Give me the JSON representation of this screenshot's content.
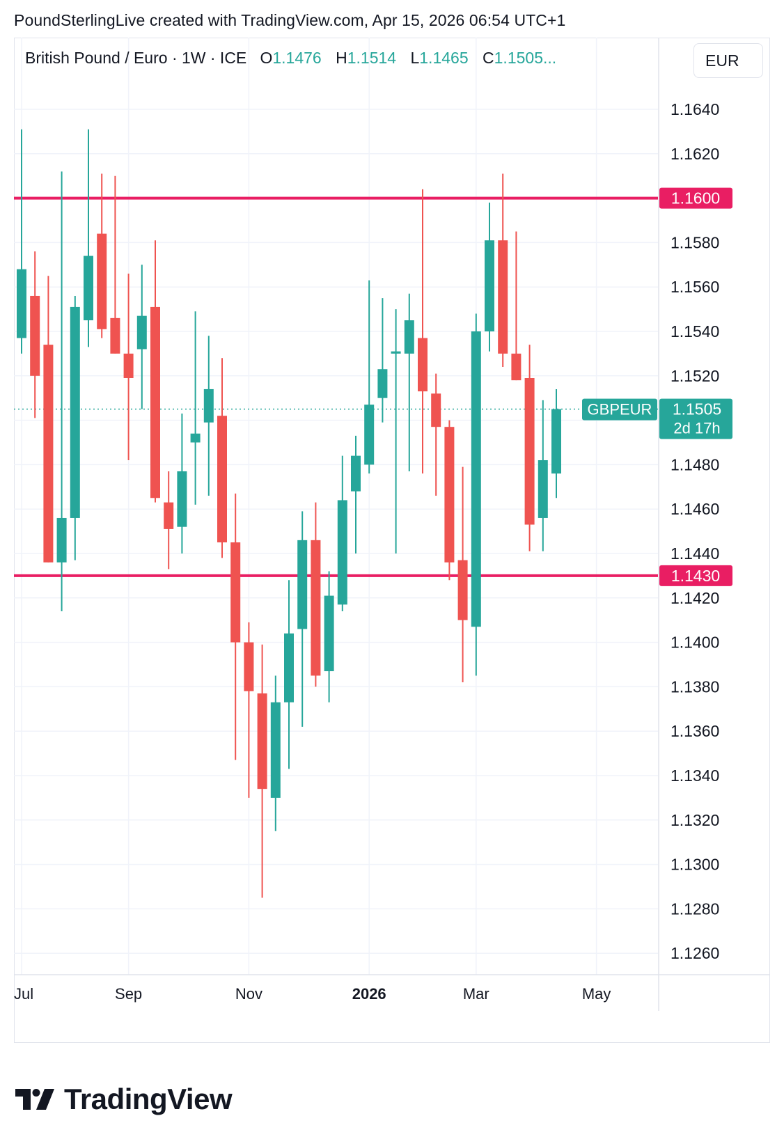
{
  "header": {
    "attribution": "PoundSterlingLive created with TradingView.com, Apr 15, 2026 06:54 UTC+1"
  },
  "legend": {
    "symbol": "British Pound / Euro · 1W · ICE",
    "o_label": "O",
    "o_value": "1.1476",
    "h_label": "H",
    "h_value": "1.1514",
    "l_label": "L",
    "l_value": "1.1465",
    "c_label": "C",
    "c_value": "1.1505..."
  },
  "currency": "EUR",
  "colors": {
    "up": "#26a69a",
    "down": "#ef5350",
    "level_line": "#e91e63",
    "grid": "#f0f3fa",
    "axis_text": "#131722"
  },
  "branding": {
    "logo_text": "TradingView"
  },
  "chart_data": {
    "type": "candlestick",
    "symbol": "GBPEUR",
    "interval": "1W",
    "ylim": [
      1.1245,
      1.1665
    ],
    "y_ticks": [
      "1.1640",
      "1.1620",
      "1.1580",
      "1.1560",
      "1.1540",
      "1.1520",
      "1.1480",
      "1.1460",
      "1.1440",
      "1.1420",
      "1.1400",
      "1.1380",
      "1.1360",
      "1.1340",
      "1.1320",
      "1.1300",
      "1.1280",
      "1.1260"
    ],
    "x_ticks": [
      {
        "label": "Jul",
        "week": 0,
        "bold": false
      },
      {
        "label": "Sep",
        "week": 8,
        "bold": false
      },
      {
        "label": "Nov",
        "week": 17,
        "bold": false
      },
      {
        "label": "2026",
        "week": 26,
        "bold": true
      },
      {
        "label": "Mar",
        "week": 34,
        "bold": false
      },
      {
        "label": "May",
        "week": 43,
        "bold": false
      }
    ],
    "horizontal_levels": [
      {
        "value": 1.16,
        "label": "1.1600"
      },
      {
        "value": 1.143,
        "label": "1.1430"
      }
    ],
    "current_price": {
      "value": 1.1505,
      "label": "1.1505",
      "name": "GBPEUR",
      "countdown": "2d 17h"
    },
    "grid": true,
    "candles": [
      {
        "o": 1.1537,
        "h": 1.1631,
        "l": 1.153,
        "c": 1.1568
      },
      {
        "o": 1.1556,
        "h": 1.1576,
        "l": 1.1501,
        "c": 1.152
      },
      {
        "o": 1.1534,
        "h": 1.1565,
        "l": 1.1436,
        "c": 1.1436
      },
      {
        "o": 1.1436,
        "h": 1.1612,
        "l": 1.1414,
        "c": 1.1456
      },
      {
        "o": 1.1456,
        "h": 1.1556,
        "l": 1.1437,
        "c": 1.1551
      },
      {
        "o": 1.1545,
        "h": 1.1631,
        "l": 1.1533,
        "c": 1.1574
      },
      {
        "o": 1.1584,
        "h": 1.1611,
        "l": 1.1537,
        "c": 1.1541
      },
      {
        "o": 1.1546,
        "h": 1.161,
        "l": 1.153,
        "c": 1.153
      },
      {
        "o": 1.153,
        "h": 1.1566,
        "l": 1.1482,
        "c": 1.1519
      },
      {
        "o": 1.1532,
        "h": 1.157,
        "l": 1.1505,
        "c": 1.1547
      },
      {
        "o": 1.1551,
        "h": 1.1581,
        "l": 1.1463,
        "c": 1.1465
      },
      {
        "o": 1.1463,
        "h": 1.1477,
        "l": 1.1433,
        "c": 1.1451
      },
      {
        "o": 1.1452,
        "h": 1.1503,
        "l": 1.144,
        "c": 1.1477
      },
      {
        "o": 1.149,
        "h": 1.1549,
        "l": 1.1462,
        "c": 1.1494
      },
      {
        "o": 1.1499,
        "h": 1.1538,
        "l": 1.1466,
        "c": 1.1514
      },
      {
        "o": 1.1502,
        "h": 1.1528,
        "l": 1.1438,
        "c": 1.1445
      },
      {
        "o": 1.1445,
        "h": 1.1467,
        "l": 1.1347,
        "c": 1.14
      },
      {
        "o": 1.14,
        "h": 1.1409,
        "l": 1.133,
        "c": 1.1378
      },
      {
        "o": 1.1377,
        "h": 1.1399,
        "l": 1.1285,
        "c": 1.1334
      },
      {
        "o": 1.133,
        "h": 1.1385,
        "l": 1.1315,
        "c": 1.1373
      },
      {
        "o": 1.1373,
        "h": 1.1428,
        "l": 1.1343,
        "c": 1.1404
      },
      {
        "o": 1.1406,
        "h": 1.1459,
        "l": 1.1362,
        "c": 1.1446
      },
      {
        "o": 1.1446,
        "h": 1.1463,
        "l": 1.138,
        "c": 1.1385
      },
      {
        "o": 1.1387,
        "h": 1.1432,
        "l": 1.1373,
        "c": 1.1421
      },
      {
        "o": 1.1417,
        "h": 1.1484,
        "l": 1.1414,
        "c": 1.1464
      },
      {
        "o": 1.1468,
        "h": 1.1493,
        "l": 1.144,
        "c": 1.1484
      },
      {
        "o": 1.148,
        "h": 1.1563,
        "l": 1.1476,
        "c": 1.1507
      },
      {
        "o": 1.151,
        "h": 1.1555,
        "l": 1.1499,
        "c": 1.1523
      },
      {
        "o": 1.153,
        "h": 1.155,
        "l": 1.144,
        "c": 1.1531
      },
      {
        "o": 1.153,
        "h": 1.1557,
        "l": 1.1477,
        "c": 1.1545
      },
      {
        "o": 1.1537,
        "h": 1.1604,
        "l": 1.1476,
        "c": 1.1513
      },
      {
        "o": 1.1512,
        "h": 1.1521,
        "l": 1.1466,
        "c": 1.1497
      },
      {
        "o": 1.1497,
        "h": 1.15,
        "l": 1.1428,
        "c": 1.1436
      },
      {
        "o": 1.1437,
        "h": 1.1479,
        "l": 1.1382,
        "c": 1.141
      },
      {
        "o": 1.1407,
        "h": 1.1548,
        "l": 1.1385,
        "c": 1.154
      },
      {
        "o": 1.154,
        "h": 1.1598,
        "l": 1.1531,
        "c": 1.1581
      },
      {
        "o": 1.1581,
        "h": 1.1611,
        "l": 1.1524,
        "c": 1.153
      },
      {
        "o": 1.153,
        "h": 1.1585,
        "l": 1.1518,
        "c": 1.1518
      },
      {
        "o": 1.1519,
        "h": 1.1534,
        "l": 1.1441,
        "c": 1.1453
      },
      {
        "o": 1.1456,
        "h": 1.1509,
        "l": 1.1441,
        "c": 1.1482
      },
      {
        "o": 1.1476,
        "h": 1.1514,
        "l": 1.1465,
        "c": 1.1505
      }
    ]
  }
}
